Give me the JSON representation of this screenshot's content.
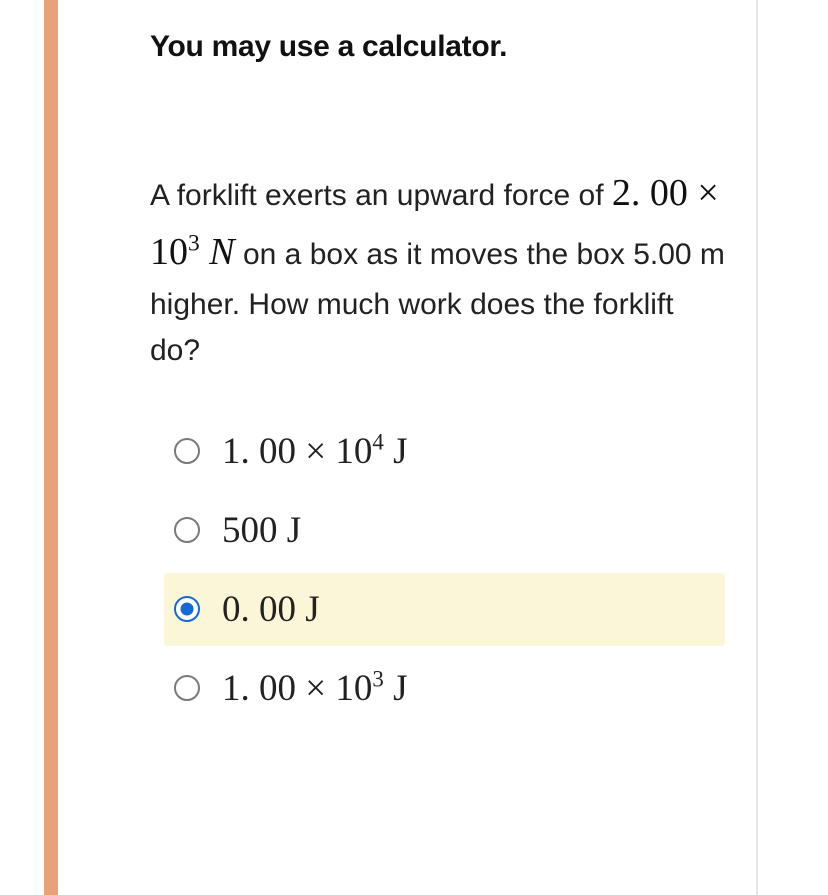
{
  "instruction": "You may use a calculator.",
  "question": {
    "part1": "A forklift exerts an upward force of ",
    "force_coef": "2. 00",
    "times": " × ",
    "force_base": "10",
    "force_exp": "3",
    "force_unit": " N",
    "part2": " on a box as it moves the box 5.00 m higher. How much work does the forklift do?"
  },
  "options": [
    {
      "selected": false,
      "coef": "1. 00",
      "times": " × ",
      "base": "10",
      "exp": "4",
      "unit": " J"
    },
    {
      "selected": false,
      "plain": "500 J"
    },
    {
      "selected": true,
      "plain": "0. 00 J"
    },
    {
      "selected": false,
      "coef": "1. 00",
      "times": " × ",
      "base": "10",
      "exp": "3",
      "unit": " J"
    }
  ],
  "colors": {
    "left_bar": "#e8a27a",
    "selected_bg": "#fcf6d8",
    "radio_selected": "#1868d1",
    "radio_border": "#7a7a7a"
  }
}
